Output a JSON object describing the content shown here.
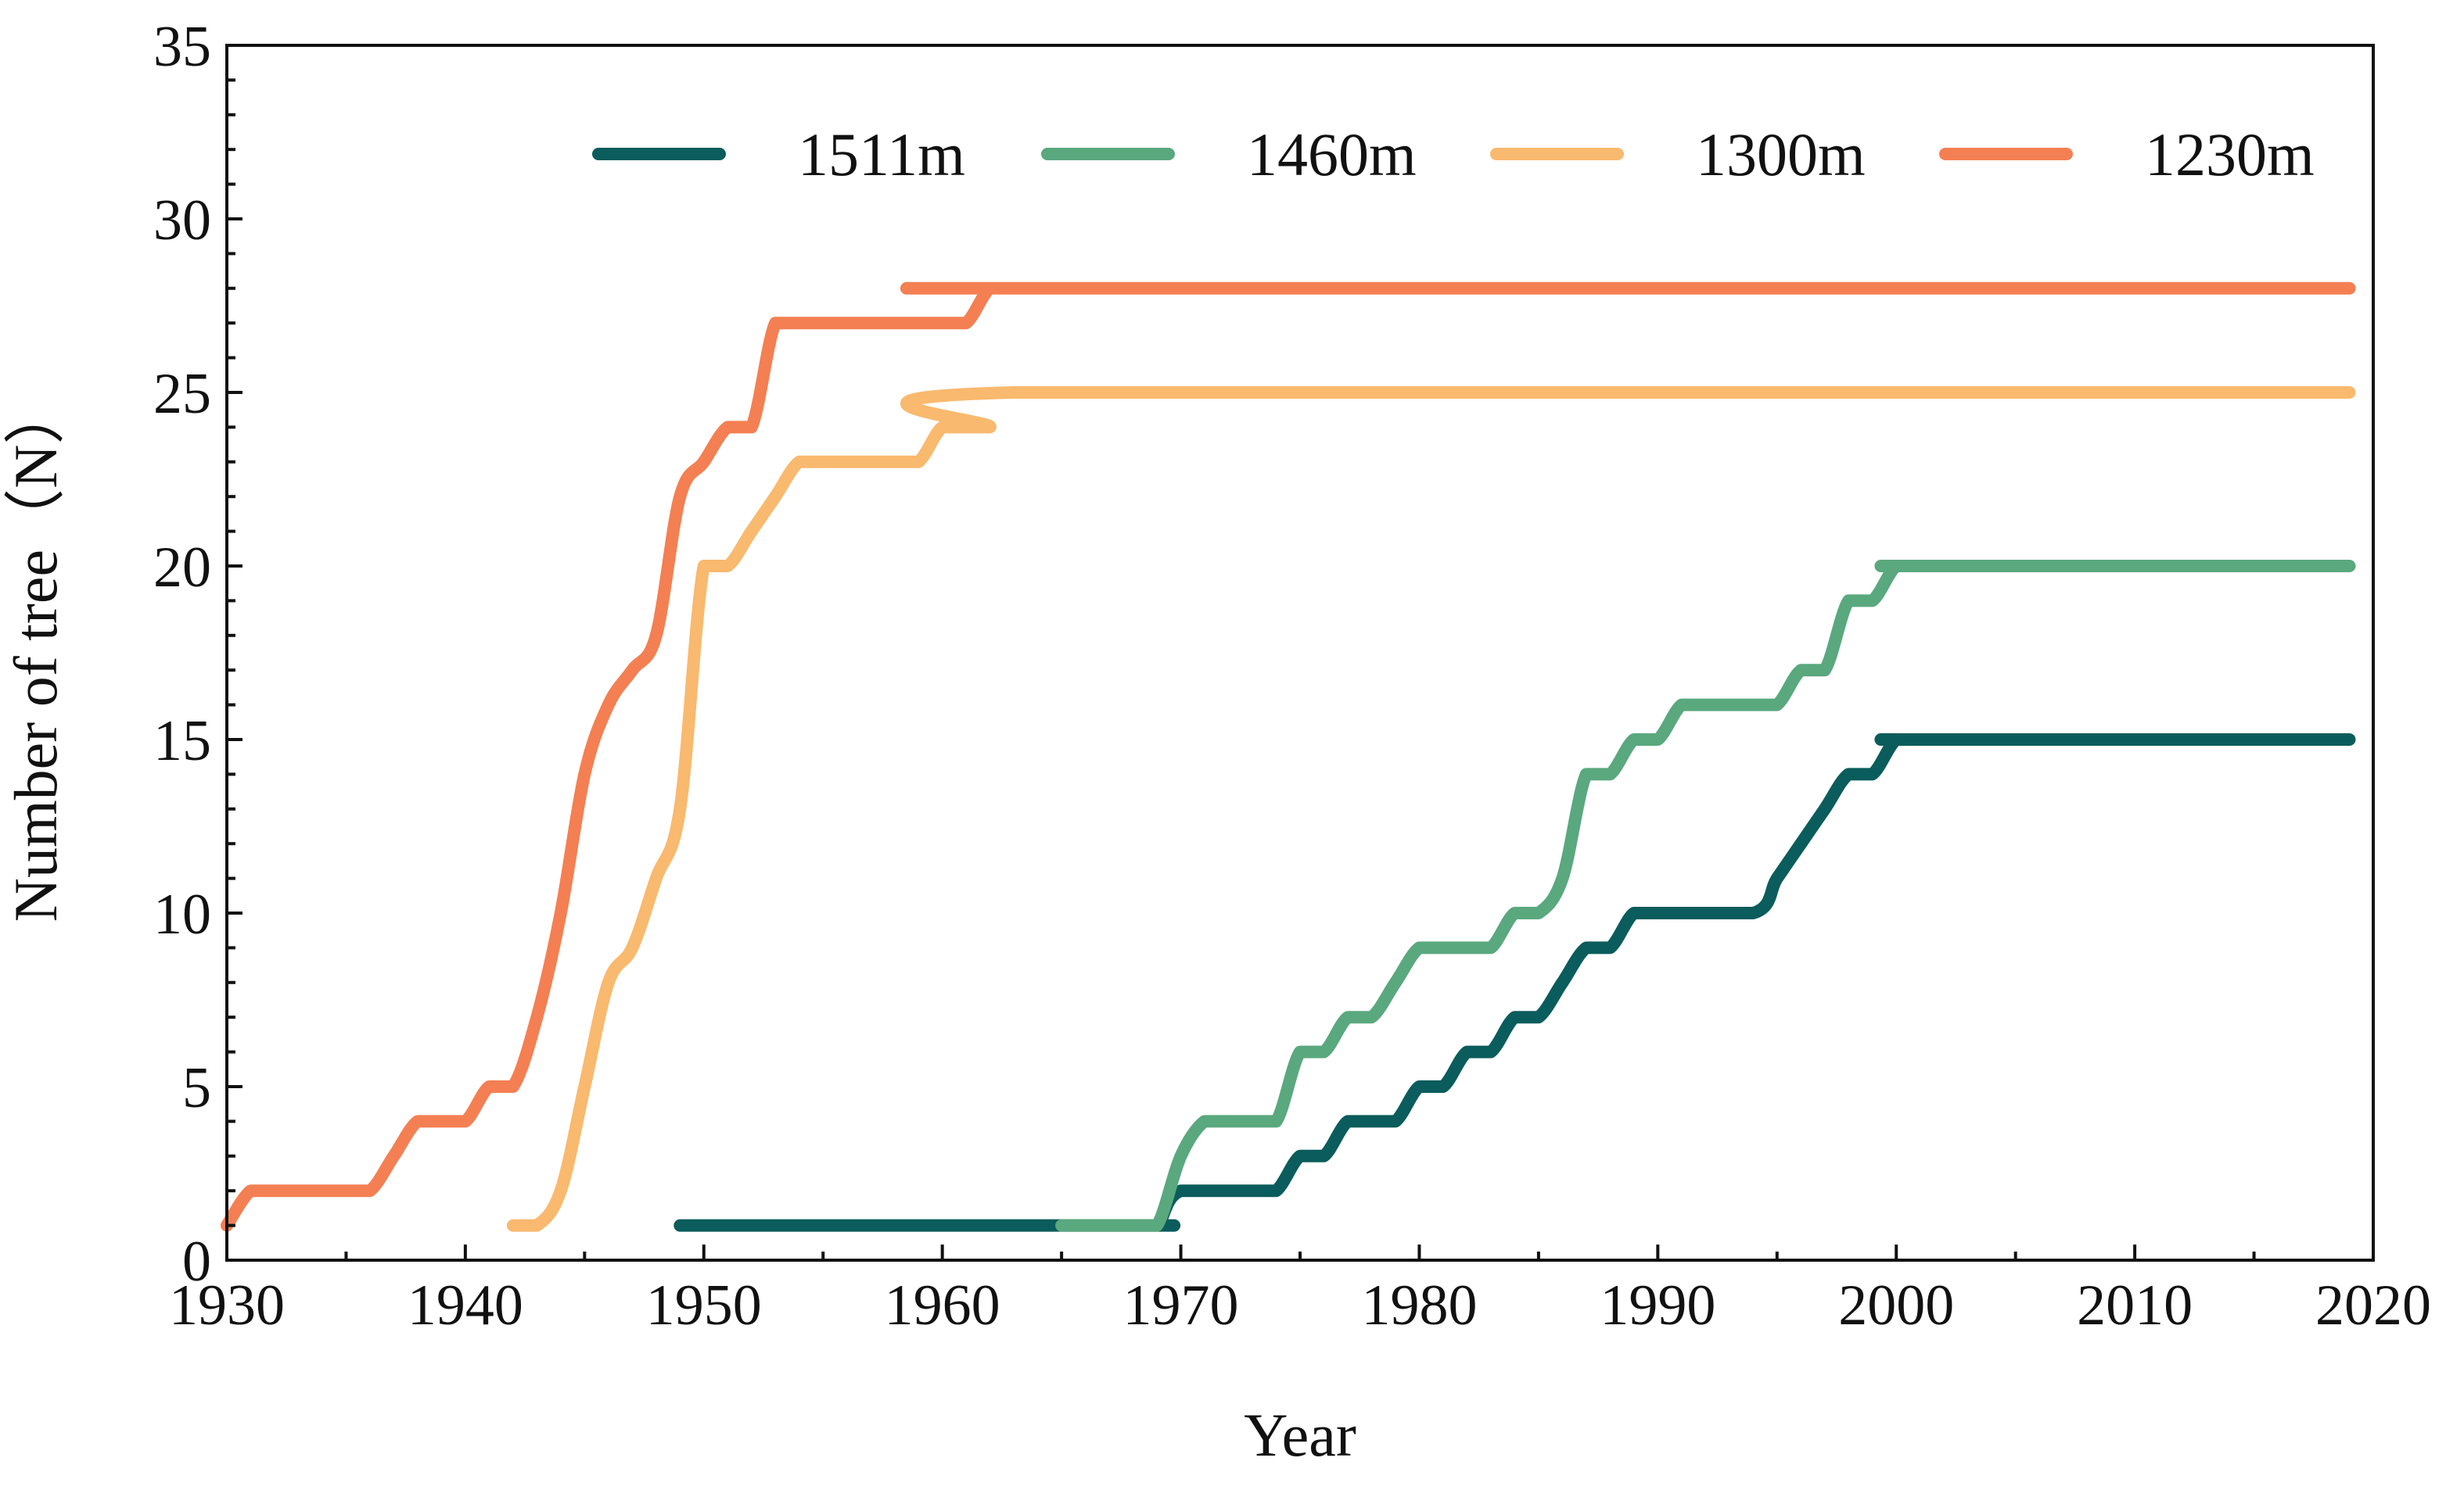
{
  "chart_data": {
    "type": "line",
    "xlabel": "Year",
    "ylabel": "Number of tree（N）",
    "xlim": [
      1930,
      2020
    ],
    "ylim": [
      0,
      35
    ],
    "xticks": [
      1930,
      1940,
      1950,
      1960,
      1970,
      1980,
      1990,
      2000,
      2010,
      2020
    ],
    "yticks": [
      0,
      5,
      10,
      15,
      20,
      25,
      30,
      35
    ],
    "legend_position": "top-right",
    "grid": false,
    "series": [
      {
        "name": "1511m",
        "color": "#0b5c5c",
        "x": [
          1949,
          1968,
          1969,
          1970,
          1973,
          1974,
          1975,
          1976,
          1977,
          1978,
          1979,
          1980,
          1981,
          1982,
          1983,
          1984,
          1985,
          1986,
          1987,
          1988,
          1989,
          1990,
          1994,
          1995,
          1996,
          1997,
          1998,
          1999,
          2000,
          2001,
          2019
        ],
        "y": [
          1,
          1,
          1,
          2,
          2,
          2,
          3,
          3,
          4,
          4,
          4,
          5,
          5,
          6,
          6,
          7,
          7,
          8,
          9,
          9,
          10,
          10,
          10,
          11,
          12,
          13,
          14,
          14,
          15,
          15,
          15
        ]
      },
      {
        "name": "1460m",
        "color": "#5aa87e",
        "x": [
          1965,
          1968,
          1969,
          1970,
          1971,
          1972,
          1973,
          1974,
          1975,
          1976,
          1977,
          1978,
          1979,
          1980,
          1981,
          1982,
          1983,
          1984,
          1985,
          1986,
          1987,
          1988,
          1989,
          1990,
          1991,
          1992,
          1993,
          1994,
          1995,
          1996,
          1997,
          1998,
          1999,
          2000,
          2001,
          2019
        ],
        "y": [
          1,
          1,
          1,
          3,
          4,
          4,
          4,
          4,
          6,
          6,
          7,
          7,
          8,
          9,
          9,
          9,
          9,
          10,
          10,
          11,
          14,
          14,
          15,
          15,
          16,
          16,
          16,
          16,
          16,
          17,
          17,
          19,
          19,
          20,
          20,
          20
        ]
      },
      {
        "name": "1300m",
        "color": "#f9b96e",
        "x": [
          1942,
          1943,
          1944,
          1945,
          1946,
          1947,
          1948,
          1949,
          1950,
          1951,
          1952,
          1953,
          1954,
          1955,
          1956,
          1957,
          1958,
          1959,
          1960,
          1961,
          1962,
          1963,
          2019
        ],
        "y": [
          1,
          1,
          2,
          5,
          8,
          9,
          11,
          13,
          20,
          20,
          21,
          22,
          23,
          23,
          23,
          23,
          23,
          23,
          24,
          24,
          24,
          25,
          25
        ]
      },
      {
        "name": "1230m",
        "color": "#f47f52",
        "x": [
          1930,
          1931,
          1932,
          1933,
          1934,
          1935,
          1936,
          1937,
          1938,
          1939,
          1940,
          1941,
          1942,
          1943,
          1944,
          1945,
          1946,
          1947,
          1948,
          1949,
          1950,
          1951,
          1952,
          1953,
          1954,
          1955,
          1956,
          1957,
          1958,
          1959,
          1960,
          1961,
          1962,
          1963,
          2019
        ],
        "y": [
          1,
          2,
          2,
          2,
          2,
          2,
          2,
          3,
          4,
          4,
          4,
          5,
          5,
          7,
          10,
          14,
          16,
          17,
          18,
          22,
          23,
          24,
          24,
          27,
          27,
          27,
          27,
          27,
          27,
          27,
          27,
          27,
          28,
          28,
          28
        ]
      }
    ]
  }
}
